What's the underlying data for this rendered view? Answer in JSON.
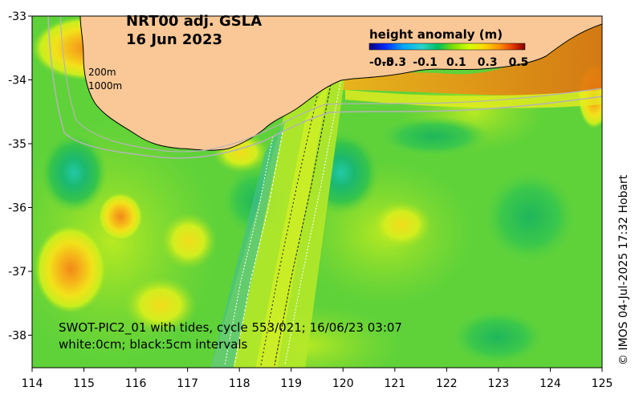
{
  "title": {
    "line1": "NRT00 adj. GSLA",
    "line2": "16 Jun 2023"
  },
  "legend": {
    "title": "height anomaly (m)",
    "ticks": [
      "-0.5",
      "-0.3",
      "-0.1",
      "0.1",
      "0.3",
      "0.5"
    ],
    "colors": [
      "#00007f",
      "#0028ff",
      "#00a8ff",
      "#2ad4c8",
      "#00c060",
      "#7fe000",
      "#d4ff00",
      "#ffd700",
      "#ff8c00",
      "#e03000",
      "#800000"
    ]
  },
  "isobaths": {
    "label_200": "200m",
    "label_1000": "1000m"
  },
  "swot": {
    "line1": "SWOT-PIC2_01 with tides, cycle 553/021; 16/06/23 03:07",
    "line2": "white:0cm; black:5cm intervals"
  },
  "credit": "© IMOS 04-Jul-2025 17:32 Hobart",
  "axes": {
    "x_ticks": [
      "114",
      "115",
      "116",
      "117",
      "118",
      "119",
      "120",
      "121",
      "122",
      "123",
      "124",
      "125"
    ],
    "y_ticks": [
      "-33",
      "-34",
      "-35",
      "-36",
      "-37",
      "-38"
    ]
  },
  "colors": {
    "land": "#f9c896",
    "background_field": "#5fd23a",
    "isobath": "#b4b4b4"
  }
}
